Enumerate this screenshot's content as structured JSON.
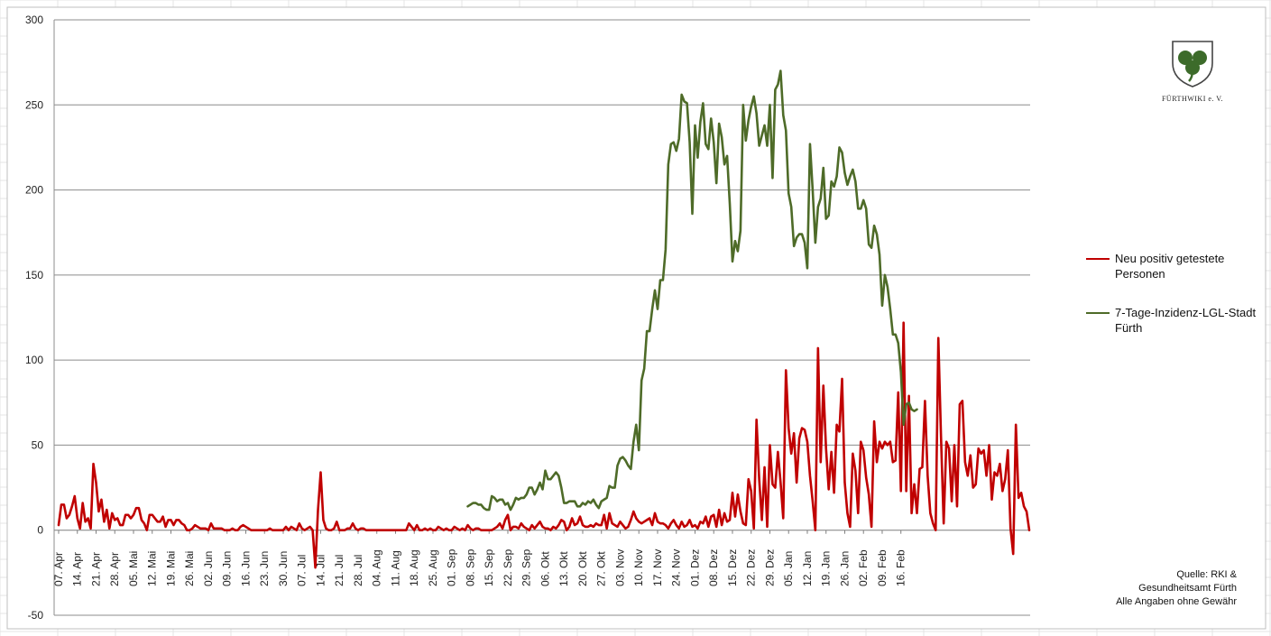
{
  "chart_data": {
    "type": "line",
    "ylim": [
      -50,
      300
    ],
    "yticks": [
      -50,
      0,
      50,
      100,
      150,
      200,
      250,
      300
    ],
    "grid": true,
    "legend": "right",
    "x_tick_labels": [
      "07. Apr",
      "14. Apr",
      "21. Apr",
      "28. Apr",
      "05. Mai",
      "12. Mai",
      "19. Mai",
      "26. Mai",
      "02. Jun",
      "09. Jun",
      "16. Jun",
      "23. Jun",
      "30. Jun",
      "07. Jul",
      "14. Jul",
      "21. Jul",
      "28. Jul",
      "04. Aug",
      "11. Aug",
      "18. Aug",
      "25. Aug",
      "01. Sep",
      "08. Sep",
      "15. Sep",
      "22. Sep",
      "29. Sep",
      "06. Okt",
      "13. Okt",
      "20. Okt",
      "27. Okt",
      "03. Nov",
      "10. Nov",
      "17. Nov",
      "24. Nov",
      "01. Dez",
      "08. Dez",
      "15. Dez",
      "22. Dez",
      "29. Dez",
      "05. Jan",
      "12. Jan",
      "19. Jan",
      "26. Jan",
      "02. Feb",
      "09. Feb",
      "16. Feb"
    ],
    "series": [
      {
        "name": "Neu positiv getestete Personen",
        "color": "#c00000",
        "start_index": 0,
        "values": [
          3,
          15,
          15,
          7,
          9,
          14,
          20,
          7,
          1,
          16,
          5,
          7,
          1,
          39,
          28,
          11,
          18,
          5,
          12,
          1,
          10,
          6,
          7,
          3,
          3,
          9,
          9,
          7,
          9,
          13,
          13,
          6,
          4,
          0,
          9,
          9,
          7,
          5,
          5,
          8,
          2,
          6,
          6,
          3,
          6,
          6,
          4,
          3,
          0,
          0,
          1,
          3,
          2,
          1,
          1,
          1,
          0,
          4,
          1,
          1,
          1,
          1,
          0,
          0,
          0,
          1,
          0,
          0,
          2,
          3,
          2,
          1,
          0,
          0,
          0,
          0,
          0,
          0,
          0,
          1,
          0,
          0,
          0,
          0,
          0,
          2,
          0,
          2,
          1,
          0,
          4,
          1,
          0,
          1,
          2,
          0,
          -22,
          12,
          34,
          6,
          1,
          0,
          0,
          1,
          5,
          0,
          0,
          0,
          1,
          1,
          4,
          1,
          0,
          1,
          1,
          0,
          0,
          0,
          0,
          0,
          0,
          0,
          0,
          0,
          0,
          0,
          0,
          0,
          0,
          0,
          0,
          4,
          2,
          0,
          3,
          0,
          0,
          1,
          0,
          1,
          0,
          0,
          2,
          1,
          0,
          1,
          0,
          0,
          2,
          1,
          0,
          1,
          0,
          3,
          1,
          0,
          1,
          1,
          0,
          0,
          0,
          0,
          0,
          1,
          2,
          4,
          1,
          6,
          9,
          0,
          2,
          2,
          1,
          4,
          2,
          1,
          0,
          3,
          1,
          3,
          5,
          2,
          1,
          1,
          0,
          2,
          1,
          3,
          6,
          5,
          0,
          2,
          7,
          3,
          4,
          8,
          3,
          2,
          2,
          3,
          2,
          4,
          3,
          3,
          9,
          1,
          10,
          4,
          3,
          2,
          5,
          3,
          1,
          2,
          6,
          11,
          7,
          5,
          4,
          5,
          6,
          7,
          3,
          10,
          5,
          4,
          4,
          3,
          1,
          4,
          6,
          3,
          1,
          5,
          2,
          3,
          6,
          2,
          3,
          1,
          5,
          4,
          8,
          2,
          8,
          9,
          2,
          12,
          3,
          10,
          5,
          6,
          22,
          8,
          21,
          11,
          4,
          3,
          30,
          23,
          1,
          65,
          30,
          6,
          37,
          2,
          50,
          27,
          25,
          46,
          28,
          7,
          94,
          60,
          45,
          57,
          28,
          54,
          60,
          59,
          52,
          32,
          17,
          0,
          107,
          40,
          85,
          48,
          24,
          46,
          22,
          62,
          58,
          89,
          28,
          10,
          2,
          45,
          35,
          10,
          52,
          47,
          31,
          21,
          2,
          64,
          40,
          52,
          48,
          52,
          50,
          52,
          40,
          41,
          81,
          23,
          122,
          23,
          79,
          10,
          27,
          10,
          36,
          37,
          76,
          32,
          10,
          4,
          0,
          113,
          55,
          4,
          52,
          48,
          17,
          50,
          14,
          74,
          76,
          40,
          32,
          44,
          25,
          27,
          48,
          45,
          47,
          32,
          50,
          18,
          34,
          32,
          39,
          23,
          30,
          47,
          1,
          -14,
          62,
          19,
          22,
          14,
          11,
          0
        ]
      },
      {
        "name": "7-Tage-Inzidenz-LGL-Stadt Fürth",
        "color": "#4e6b28",
        "start_index": 153,
        "values": [
          14,
          15,
          16,
          16,
          15,
          15,
          13,
          12,
          12,
          20,
          19,
          17,
          18,
          18,
          15,
          16,
          12,
          15,
          19,
          18,
          19,
          19,
          21,
          25,
          25,
          21,
          24,
          28,
          24,
          35,
          30,
          30,
          32,
          34,
          32,
          25,
          16,
          16,
          17,
          17,
          17,
          14,
          14,
          16,
          15,
          17,
          16,
          18,
          15,
          13,
          17,
          18,
          19,
          26,
          25,
          25,
          38,
          42,
          43,
          41,
          38,
          36,
          52,
          62,
          47,
          88,
          95,
          117,
          117,
          130,
          141,
          130,
          147,
          147,
          165,
          215,
          227,
          228,
          223,
          230,
          256,
          252,
          251,
          228,
          186,
          238,
          219,
          240,
          251,
          227,
          224,
          242,
          228,
          204,
          239,
          231,
          215,
          220,
          192,
          158,
          170,
          164,
          176,
          250,
          229,
          241,
          249,
          255,
          245,
          226,
          232,
          238,
          226,
          250,
          207,
          259,
          262,
          270,
          244,
          235,
          198,
          190,
          167,
          172,
          174,
          174,
          169,
          154,
          227,
          200,
          169,
          190,
          195,
          213,
          183,
          185,
          205,
          202,
          208,
          225,
          222,
          210,
          203,
          208,
          212,
          205,
          189,
          189,
          194,
          189,
          168,
          166,
          179,
          174,
          162,
          132,
          150,
          143,
          130,
          115,
          115,
          110,
          93,
          62,
          74,
          75,
          71,
          70,
          71
        ]
      }
    ]
  },
  "legend": {
    "items": [
      {
        "text": "Neu positiv getestete Personen"
      },
      {
        "text": "7-Tage-Inzidenz-LGL-Stadt Fürth"
      }
    ]
  },
  "logo": {
    "text": "FÜRTHWIKI e. V."
  },
  "source": {
    "line1": "Quelle: RKI &",
    "line2": "Gesundheitsamt Fürth",
    "line3": "Alle Angaben ohne Gewähr"
  }
}
